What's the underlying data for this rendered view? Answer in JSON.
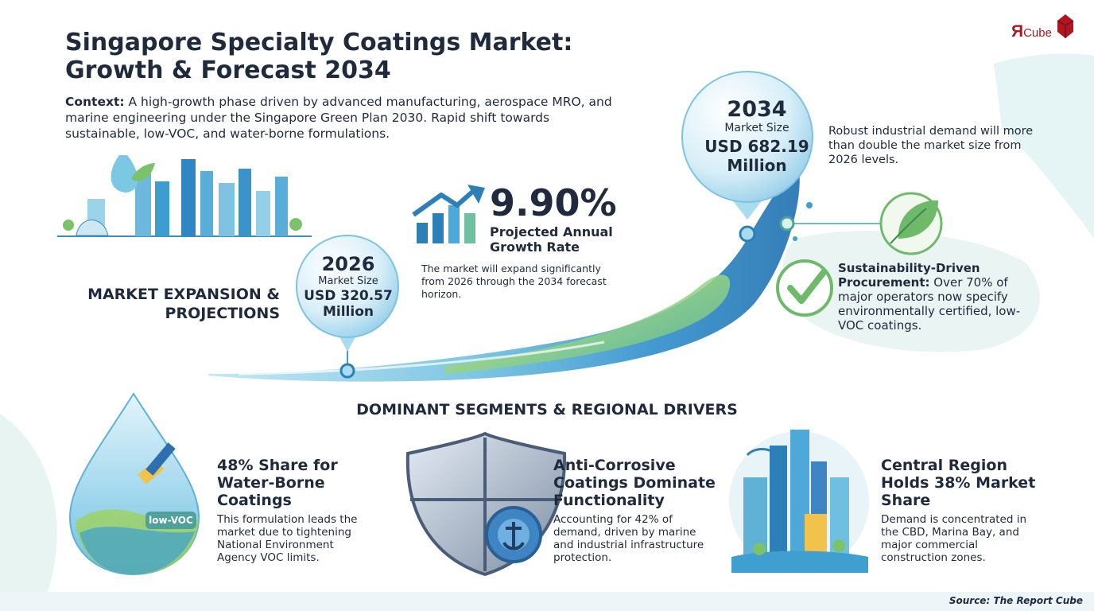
{
  "title": "Singapore Specialty Coatings Market: Growth & Forecast 2034",
  "brand": {
    "letter": "Я",
    "name": "Cube"
  },
  "context": {
    "label": "Context:",
    "text": "A high-growth phase driven by advanced manufacturing, aerospace MRO, and marine engineering under the Singapore Green Plan 2030. Rapid shift towards sustainable, low-VOC, and water-borne formulations."
  },
  "expansion": {
    "title": "MARKET EXPANSION & PROJECTIONS"
  },
  "bubble_2026": {
    "year": "2026",
    "label": "Market Size",
    "value": "USD 320.57 Million"
  },
  "bubble_2034": {
    "year": "2034",
    "label": "Market Size",
    "value": "USD 682.19 Million"
  },
  "growth": {
    "rate": "9.90%",
    "label": "Projected Annual Growth Rate",
    "description": "The market will expand significantly from 2026 through the 2034 forecast horizon."
  },
  "robust_note": "Robust industrial demand will more than double the market size from 2026 levels.",
  "sustainability": {
    "label": "Sustainability-Driven Procurement:",
    "text": "Over 70% of major operators now specify environmentally certified, low-VOC coatings."
  },
  "segments_heading": "DOMINANT SEGMENTS & REGIONAL DRIVERS",
  "cards": [
    {
      "title": "48% Share for Water-Borne Coatings",
      "description": "This formulation leads the market due to tightening National Environment Agency VOC limits.",
      "badge": "low-VOC"
    },
    {
      "title": "Anti-Corrosive Coatings Dominate Functionality",
      "description": "Accounting for 42% of demand, driven by marine and industrial infrastructure protection."
    },
    {
      "title": "Central Region Holds 38% Market Share",
      "description": "Demand is concentrated in the CBD, Marina Bay, and major commercial construction zones."
    }
  ],
  "source": "Source: The Report Cube",
  "colors": {
    "text": "#1f2a3c",
    "wave_blue": "#3f9fd0",
    "wave_green": "#9fd24a",
    "brand_red": "#b01621",
    "teal": "#4fa29b"
  }
}
